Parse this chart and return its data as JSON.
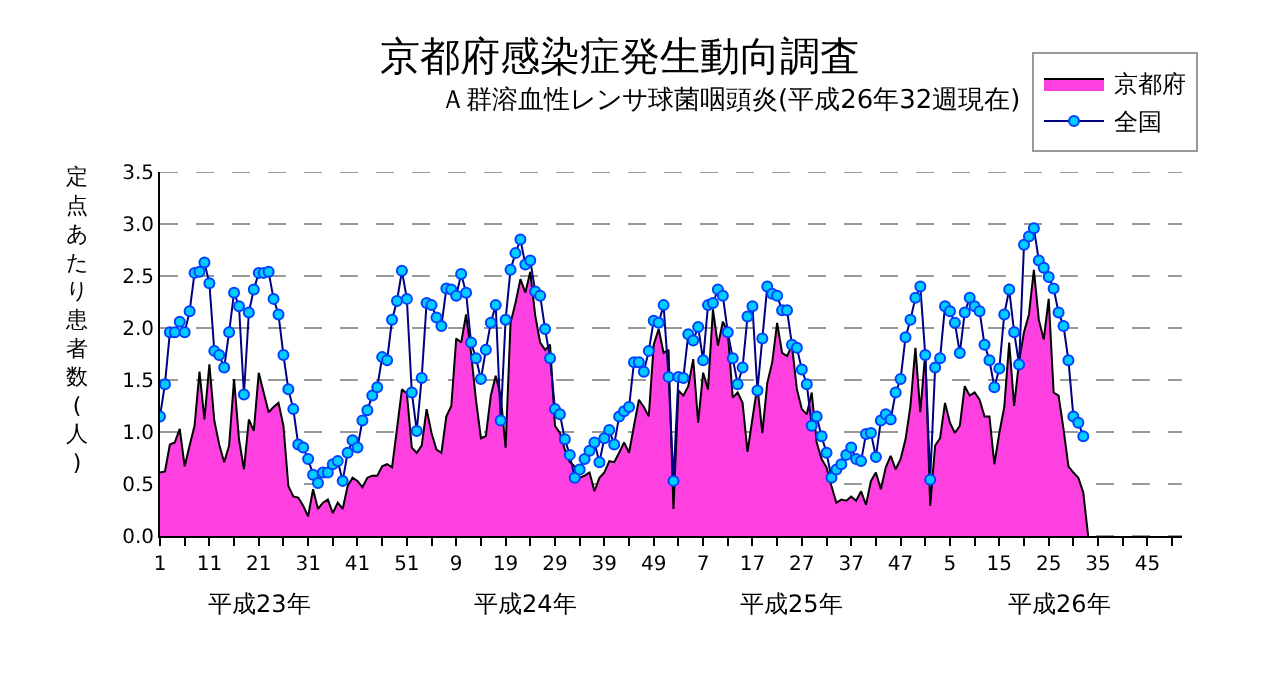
{
  "chart_data": {
    "type": "area",
    "title": "京都府感染症発生動向調査",
    "subtitle": "Ａ群溶血性レンサ球菌咽頭炎(平成26年32週現在)",
    "ylabel": "定点あたり患者数(人)",
    "categories": [
      "1",
      null,
      null,
      null,
      null,
      null,
      null,
      null,
      null,
      null,
      "11",
      null,
      null,
      null,
      null,
      null,
      null,
      null,
      null,
      null,
      "21",
      null,
      null,
      null,
      null,
      null,
      null,
      null,
      null,
      null,
      "31",
      null,
      null,
      null,
      null,
      null,
      null,
      null,
      null,
      null,
      "41",
      null,
      null,
      null,
      null,
      null,
      null,
      null,
      null,
      null,
      "51",
      null,
      null,
      null,
      null,
      null,
      null,
      null,
      null,
      null,
      "9",
      null,
      null,
      null,
      null,
      null,
      null,
      null,
      null,
      null,
      "19",
      null,
      null,
      null,
      null,
      null,
      null,
      null,
      null,
      null,
      "29",
      null,
      null,
      null,
      null,
      null,
      null,
      null,
      null,
      null,
      "39",
      null,
      null,
      null,
      null,
      null,
      null,
      null,
      null,
      null,
      "49",
      null,
      null,
      null,
      null,
      null,
      null,
      null,
      null,
      null,
      "7",
      null,
      null,
      null,
      null,
      null,
      null,
      null,
      null,
      null,
      "17",
      null,
      null,
      null,
      null,
      null,
      null,
      null,
      null,
      null,
      "27",
      null,
      null,
      null,
      null,
      null,
      null,
      null,
      null,
      null,
      "37",
      null,
      null,
      null,
      null,
      null,
      null,
      null,
      null,
      null,
      "47",
      null,
      null,
      null,
      null,
      null,
      null,
      null,
      null,
      null,
      "5",
      null,
      null,
      null,
      null,
      null,
      null,
      null,
      null,
      null,
      "15",
      null,
      null,
      null,
      null,
      null,
      null,
      null,
      null,
      null,
      "25",
      null,
      null,
      null,
      null,
      null,
      null,
      null,
      null,
      null,
      "35",
      null,
      null,
      null,
      null,
      null,
      null,
      null,
      null,
      null,
      "45",
      null,
      null,
      null,
      null,
      null,
      null,
      null
    ],
    "series": [
      {
        "name": "京都府",
        "color": "#ff40e0",
        "values": [
          0.61,
          0.62,
          0.88,
          0.9,
          1.03,
          0.67,
          0.87,
          1.06,
          1.58,
          1.12,
          1.65,
          1.11,
          0.88,
          0.71,
          0.87,
          1.51,
          0.93,
          0.64,
          1.12,
          1.01,
          1.57,
          1.38,
          1.19,
          1.24,
          1.28,
          1.06,
          0.48,
          0.38,
          0.37,
          0.29,
          0.19,
          0.45,
          0.26,
          0.32,
          0.35,
          0.22,
          0.32,
          0.26,
          0.48,
          0.56,
          0.53,
          0.47,
          0.56,
          0.58,
          0.58,
          0.67,
          0.69,
          0.66,
          1.03,
          1.41,
          1.37,
          0.85,
          0.8,
          0.87,
          1.22,
          0.99,
          0.83,
          0.8,
          1.15,
          1.25,
          1.9,
          1.86,
          2.13,
          1.76,
          1.31,
          0.94,
          0.96,
          1.35,
          1.54,
          1.35,
          0.85,
          2.05,
          2.24,
          2.47,
          2.34,
          2.54,
          2.12,
          1.86,
          1.79,
          1.84,
          1.06,
          0.99,
          0.83,
          0.71,
          0.67,
          0.56,
          0.58,
          0.61,
          0.43,
          0.56,
          0.61,
          0.72,
          0.71,
          0.8,
          0.9,
          0.8,
          1.06,
          1.31,
          1.24,
          1.15,
          1.84,
          1.99,
          1.76,
          1.79,
          0.26,
          1.4,
          1.35,
          1.44,
          1.7,
          1.09,
          1.57,
          1.41,
          2.18,
          1.83,
          2.06,
          1.96,
          1.33,
          1.38,
          1.28,
          0.81,
          1.13,
          1.44,
          0.99,
          1.47,
          1.67,
          2.05,
          1.76,
          1.73,
          1.83,
          1.41,
          1.22,
          1.17,
          1.38,
          0.9,
          0.74,
          0.66,
          0.48,
          0.32,
          0.35,
          0.34,
          0.38,
          0.34,
          0.43,
          0.3,
          0.53,
          0.61,
          0.45,
          0.66,
          0.77,
          0.64,
          0.74,
          0.93,
          1.25,
          1.81,
          1.19,
          1.76,
          0.29,
          0.87,
          0.94,
          1.28,
          1.09,
          0.99,
          1.06,
          1.44,
          1.35,
          1.38,
          1.31,
          1.15,
          1.15,
          0.69,
          0.99,
          1.24,
          1.86,
          1.25,
          1.68,
          1.96,
          2.13,
          2.56,
          2.08,
          1.89,
          2.28,
          1.38,
          1.35,
          1.03,
          0.67,
          0.61,
          0.56,
          0.42,
          0,
          null,
          null,
          null,
          null,
          null,
          null,
          null,
          null,
          null,
          null,
          null,
          null,
          null,
          null,
          null,
          null,
          null,
          null,
          null
        ]
      },
      {
        "name": "全国",
        "type": "line",
        "color": "#00ccff",
        "marker": "circle",
        "values": [
          1.15,
          1.46,
          1.96,
          1.96,
          2.06,
          1.96,
          2.16,
          2.53,
          2.54,
          2.63,
          2.43,
          1.78,
          1.74,
          1.62,
          1.96,
          2.34,
          2.21,
          1.36,
          2.15,
          2.37,
          2.53,
          2.53,
          2.54,
          2.28,
          2.13,
          1.74,
          1.41,
          1.22,
          0.88,
          0.85,
          0.74,
          0.59,
          0.51,
          0.61,
          0.61,
          0.69,
          0.72,
          0.53,
          0.8,
          0.92,
          0.85,
          1.11,
          1.21,
          1.35,
          1.43,
          1.72,
          1.69,
          2.08,
          2.26,
          2.55,
          2.28,
          1.38,
          1.01,
          1.52,
          2.24,
          2.22,
          2.1,
          2.02,
          2.38,
          2.37,
          2.31,
          2.52,
          2.34,
          1.86,
          1.71,
          1.51,
          1.79,
          2.05,
          2.22,
          1.11,
          2.08,
          2.56,
          2.72,
          2.85,
          2.61,
          2.65,
          2.35,
          2.31,
          1.99,
          1.71,
          1.22,
          1.17,
          0.93,
          0.78,
          0.56,
          0.64,
          0.74,
          0.82,
          0.9,
          0.71,
          0.94,
          1.02,
          0.88,
          1.15,
          1.2,
          1.24,
          1.67,
          1.67,
          1.58,
          1.78,
          2.07,
          2.05,
          2.22,
          1.53,
          0.53,
          1.53,
          1.52,
          1.94,
          1.88,
          2.01,
          1.69,
          2.22,
          2.24,
          2.37,
          2.31,
          1.96,
          1.71,
          1.46,
          1.62,
          2.11,
          2.21,
          1.4,
          1.9,
          2.4,
          2.33,
          2.31,
          2.17,
          2.17,
          1.84,
          1.81,
          1.6,
          1.46,
          1.06,
          1.15,
          0.96,
          0.8,
          0.56,
          0.64,
          0.69,
          0.78,
          0.85,
          0.74,
          0.72,
          0.98,
          0.99,
          0.76,
          1.11,
          1.17,
          1.12,
          1.38,
          1.51,
          1.91,
          2.08,
          2.29,
          2.4,
          1.74,
          0.54,
          1.62,
          1.71,
          2.21,
          2.16,
          2.05,
          1.76,
          2.15,
          2.29,
          2.21,
          2.16,
          1.84,
          1.69,
          1.43,
          1.61,
          2.13,
          2.37,
          1.96,
          1.65,
          2.8,
          2.88,
          2.96,
          2.65,
          2.58,
          2.49,
          2.38,
          2.15,
          2.02,
          1.69,
          1.15,
          1.09,
          0.96,
          null,
          null,
          null,
          null,
          null,
          null,
          null,
          null,
          null,
          null,
          null,
          null,
          null,
          null,
          null,
          null,
          null,
          null,
          null,
          null
        ]
      }
    ],
    "annotations": [
      "平成23年",
      "平成24年",
      "平成25年",
      "平成26年"
    ],
    "ylim": [
      0,
      3.5
    ],
    "yticks": [
      {
        "value": 0,
        "label": "0.0"
      },
      0.5,
      {
        "value": 1,
        "label": "1.0"
      },
      1.5,
      {
        "value": 2,
        "label": "2.0"
      },
      2.5,
      {
        "value": 3,
        "label": "3.0"
      },
      3.5
    ],
    "grid": "y",
    "legend": "top right"
  }
}
